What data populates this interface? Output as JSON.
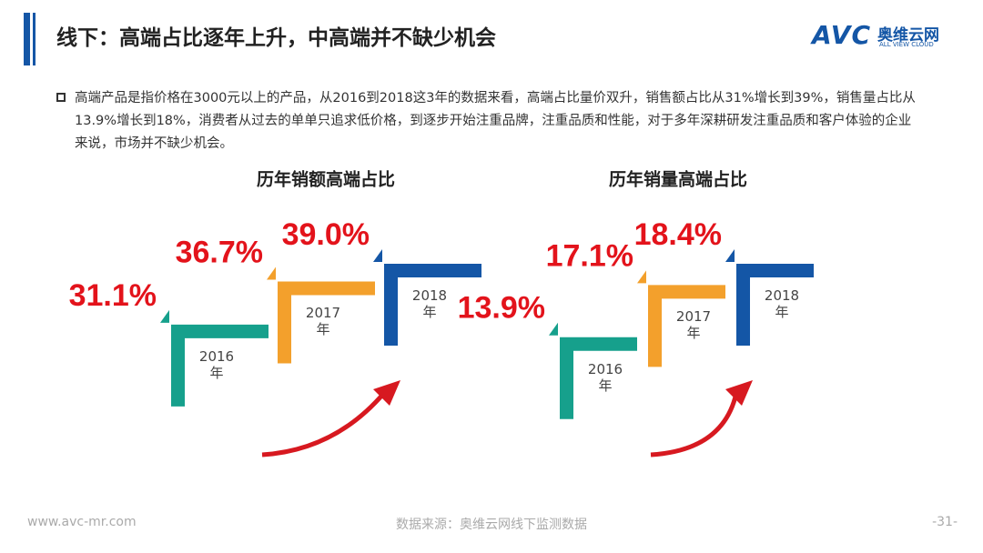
{
  "header": {
    "title": "线下：高端占比逐年上升，中高端并不缺少机会",
    "logo_mark": "AVC",
    "logo_name": "奥维云网",
    "logo_sub": "ALL VIEW CLOUD"
  },
  "bullet": "高端产品是指价格在3000元以上的产品，从2016到2018这3年的数据来看，高端占比量价双升，销售额占比从31%增长到39%，销售量占比从13.9%增长到18%，消费者从过去的单单只追求低价格，到逐步开始注重品牌，注重品质和性能，对于多年深耕研发注重品质和客户体验的企业来说，市场并不缺少机会。",
  "chart_data": [
    {
      "type": "step",
      "title": "历年销额高端占比",
      "categories": [
        "2016年",
        "2017年",
        "2018年"
      ],
      "values": [
        31.1,
        36.7,
        39.0
      ],
      "value_labels": [
        "31.1%",
        "36.7%",
        "39.0%"
      ],
      "colors": [
        "#16a08c",
        "#f3a02c",
        "#1456a6"
      ]
    },
    {
      "type": "step",
      "title": "历年销量高端占比",
      "categories": [
        "2016年",
        "2017年",
        "2018年"
      ],
      "values": [
        13.9,
        17.1,
        18.4
      ],
      "value_labels": [
        "13.9%",
        "17.1%",
        "18.4%"
      ],
      "colors": [
        "#16a08c",
        "#f3a02c",
        "#1456a6"
      ]
    }
  ],
  "footer": {
    "site": "www.avc-mr.com",
    "source": "数据来源：奥维云网线下监测数据",
    "page": "-31-"
  }
}
